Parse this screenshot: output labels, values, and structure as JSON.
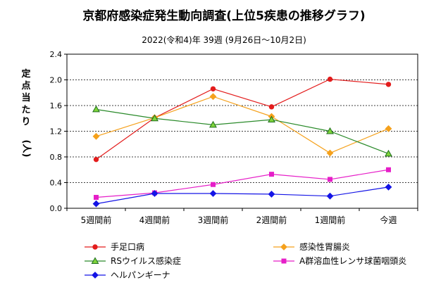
{
  "chart_data": {
    "type": "line",
    "title": "京都府感染症発生動向調査(上位5疾患の推移グラフ)",
    "subtitle": "2022(令和4)年 39週 (9月26日〜10月2日)",
    "ylabel_chars": [
      "定",
      "点",
      "当",
      "た",
      "り",
      "(人)"
    ],
    "categories": [
      "5週間前",
      "4週間前",
      "3週間前",
      "2週間前",
      "1週間前",
      "今週"
    ],
    "ylim": [
      0,
      2.4
    ],
    "yticks": [
      "0.0",
      "0.4",
      "0.8",
      "1.2",
      "1.6",
      "2.0",
      "2.4"
    ],
    "grid": true,
    "series": [
      {
        "name": "手足口病",
        "color": "#e31c1c",
        "marker": "circle",
        "values": [
          0.76,
          1.41,
          1.86,
          1.58,
          2.01,
          1.93
        ]
      },
      {
        "name": "感染性胃腸炎",
        "color": "#f5a11c",
        "marker": "diamond",
        "values": [
          1.12,
          1.41,
          1.74,
          1.43,
          0.86,
          1.24
        ]
      },
      {
        "name": "RSウイルス感染症",
        "color": "#2a8a2a",
        "marker": "triangle",
        "fill": "#7fd43a",
        "values": [
          1.54,
          1.4,
          1.3,
          1.38,
          1.2,
          0.85
        ]
      },
      {
        "name": "A群溶血性レンサ球菌咽頭炎",
        "color": "#e61ec8",
        "marker": "square",
        "values": [
          0.17,
          0.24,
          0.37,
          0.53,
          0.45,
          0.6
        ]
      },
      {
        "name": "ヘルパンギーナ",
        "color": "#1414e6",
        "marker": "diamond",
        "values": [
          0.07,
          0.23,
          0.23,
          0.22,
          0.19,
          0.33
        ]
      }
    ]
  }
}
